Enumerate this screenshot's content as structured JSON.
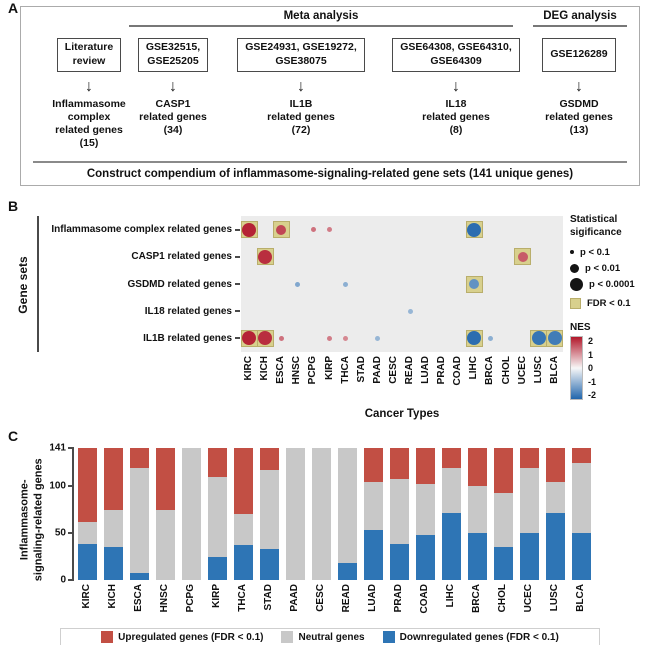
{
  "panelA": {
    "label": "A",
    "meta_header": "Meta analysis",
    "deg_header": "DEG analysis",
    "columns": [
      {
        "box": "Literature\nreview",
        "result": "Inflammasome complex\nrelated genes\n(15)"
      },
      {
        "box": "GSE32515,\nGSE25205",
        "result": "CASP1\nrelated genes\n(34)"
      },
      {
        "box": "GSE24931, GSE19272,\nGSE38075",
        "result": "IL1B\nrelated genes\n(72)"
      },
      {
        "box": "GSE64308, GSE64310,\nGSE64309",
        "result": "IL18\nrelated genes\n(8)"
      },
      {
        "box": "GSE126289",
        "result": "GSDMD\nrelated genes\n(13)"
      }
    ],
    "footer": "Construct compendium of inflammasome-signaling-related gene sets (141 unique genes)"
  },
  "panelB": {
    "label": "B",
    "ylabel": "Gene sets",
    "xlabel": "Cancer Types",
    "legend": {
      "size_title": "Statistical\nsigificance",
      "size_items": [
        {
          "label": "p < 0.1",
          "size": 1
        },
        {
          "label": "p < 0.01",
          "size": 2
        },
        {
          "label": "p < 0.0001",
          "size": 3
        }
      ],
      "fdr_label": "FDR < 0.1",
      "fdr_color": "#d8d08d",
      "nes_title": "NES",
      "nes_ticks": [
        "2",
        "1",
        "0",
        "-1",
        "-2"
      ],
      "nes_colors": [
        "#b2182b",
        "#f7f7f7",
        "#2166ac"
      ]
    },
    "chart_data": {
      "type": "scatter",
      "rows": [
        "Inflammasome complex related genes",
        "CASP1 related genes",
        "GSDMD related genes",
        "IL18 related genes",
        "IL1B related genes"
      ],
      "columns": [
        "KIRC",
        "KICH",
        "ESCA",
        "HNSC",
        "PCPG",
        "KIRP",
        "THCA",
        "STAD",
        "PAAD",
        "CESC",
        "READ",
        "LUAD",
        "PRAD",
        "COAD",
        "LIHC",
        "BRCA",
        "CHOL",
        "UCEC",
        "LUSC",
        "BLCA"
      ],
      "nes_range": [
        -2,
        2
      ],
      "points": [
        {
          "row": 0,
          "col": "KIRC",
          "size": 3,
          "nes": 1.9,
          "fdr": true
        },
        {
          "row": 0,
          "col": "ESCA",
          "size": 2,
          "nes": 1.6,
          "fdr": true
        },
        {
          "row": 0,
          "col": "PCPG",
          "size": 1,
          "nes": 1.2,
          "fdr": false
        },
        {
          "row": 0,
          "col": "KIRP",
          "size": 1,
          "nes": 1.1,
          "fdr": false
        },
        {
          "row": 0,
          "col": "LIHC",
          "size": 3,
          "nes": -1.9,
          "fdr": true
        },
        {
          "row": 1,
          "col": "KICH",
          "size": 3,
          "nes": 1.8,
          "fdr": true
        },
        {
          "row": 1,
          "col": "UCEC",
          "size": 2,
          "nes": 1.4,
          "fdr": true
        },
        {
          "row": 2,
          "col": "HNSC",
          "size": 1,
          "nes": -1.1,
          "fdr": false
        },
        {
          "row": 2,
          "col": "THCA",
          "size": 1,
          "nes": -1.0,
          "fdr": false
        },
        {
          "row": 2,
          "col": "LIHC",
          "size": 2,
          "nes": -1.4,
          "fdr": true
        },
        {
          "row": 3,
          "col": "READ",
          "size": 1,
          "nes": -0.9,
          "fdr": false
        },
        {
          "row": 4,
          "col": "KIRC",
          "size": 3,
          "nes": 1.9,
          "fdr": true
        },
        {
          "row": 4,
          "col": "KICH",
          "size": 3,
          "nes": 1.8,
          "fdr": true
        },
        {
          "row": 4,
          "col": "ESCA",
          "size": 1,
          "nes": 1.2,
          "fdr": false
        },
        {
          "row": 4,
          "col": "KIRP",
          "size": 1,
          "nes": 1.1,
          "fdr": false
        },
        {
          "row": 4,
          "col": "THCA",
          "size": 1,
          "nes": 1.0,
          "fdr": false
        },
        {
          "row": 4,
          "col": "PAAD",
          "size": 1,
          "nes": -0.9,
          "fdr": false
        },
        {
          "row": 4,
          "col": "LIHC",
          "size": 3,
          "nes": -1.9,
          "fdr": true
        },
        {
          "row": 4,
          "col": "BRCA",
          "size": 1,
          "nes": -1.0,
          "fdr": false
        },
        {
          "row": 4,
          "col": "LUSC",
          "size": 3,
          "nes": -1.8,
          "fdr": true
        },
        {
          "row": 4,
          "col": "BLCA",
          "size": 3,
          "nes": -1.7,
          "fdr": true
        }
      ]
    }
  },
  "panelC": {
    "label": "C",
    "ylabel": "Inflammasome-\nsignaling-related genes",
    "chart_data": {
      "type": "bar",
      "stacked": true,
      "categories": [
        "KIRC",
        "KICH",
        "ESCA",
        "HNSC",
        "PCPG",
        "KIRP",
        "THCA",
        "STAD",
        "PAAD",
        "CESC",
        "READ",
        "LUAD",
        "PRAD",
        "COAD",
        "LIHC",
        "BRCA",
        "CHOL",
        "UCEC",
        "LUSC",
        "BLCA"
      ],
      "ylim": [
        0,
        141
      ],
      "yticks": [
        0,
        50,
        100,
        141
      ],
      "series": [
        {
          "name": "Downregulated genes (FDR < 0.1)",
          "color": "#2e75b5",
          "values": [
            38,
            35,
            8,
            0,
            0,
            25,
            37,
            33,
            0,
            0,
            18,
            53,
            38,
            48,
            72,
            50,
            35,
            50,
            72,
            50
          ]
        },
        {
          "name": "Neutral genes",
          "color": "#c8c8c8",
          "values": [
            24,
            40,
            112,
            75,
            141,
            85,
            33,
            85,
            141,
            141,
            123,
            52,
            70,
            55,
            48,
            50,
            58,
            70,
            33,
            75
          ]
        },
        {
          "name": "Upregulated genes (FDR < 0.1)",
          "color": "#c24f44",
          "values": [
            79,
            66,
            21,
            66,
            0,
            31,
            71,
            23,
            0,
            0,
            0,
            36,
            33,
            38,
            21,
            41,
            48,
            21,
            36,
            16
          ]
        }
      ]
    }
  }
}
